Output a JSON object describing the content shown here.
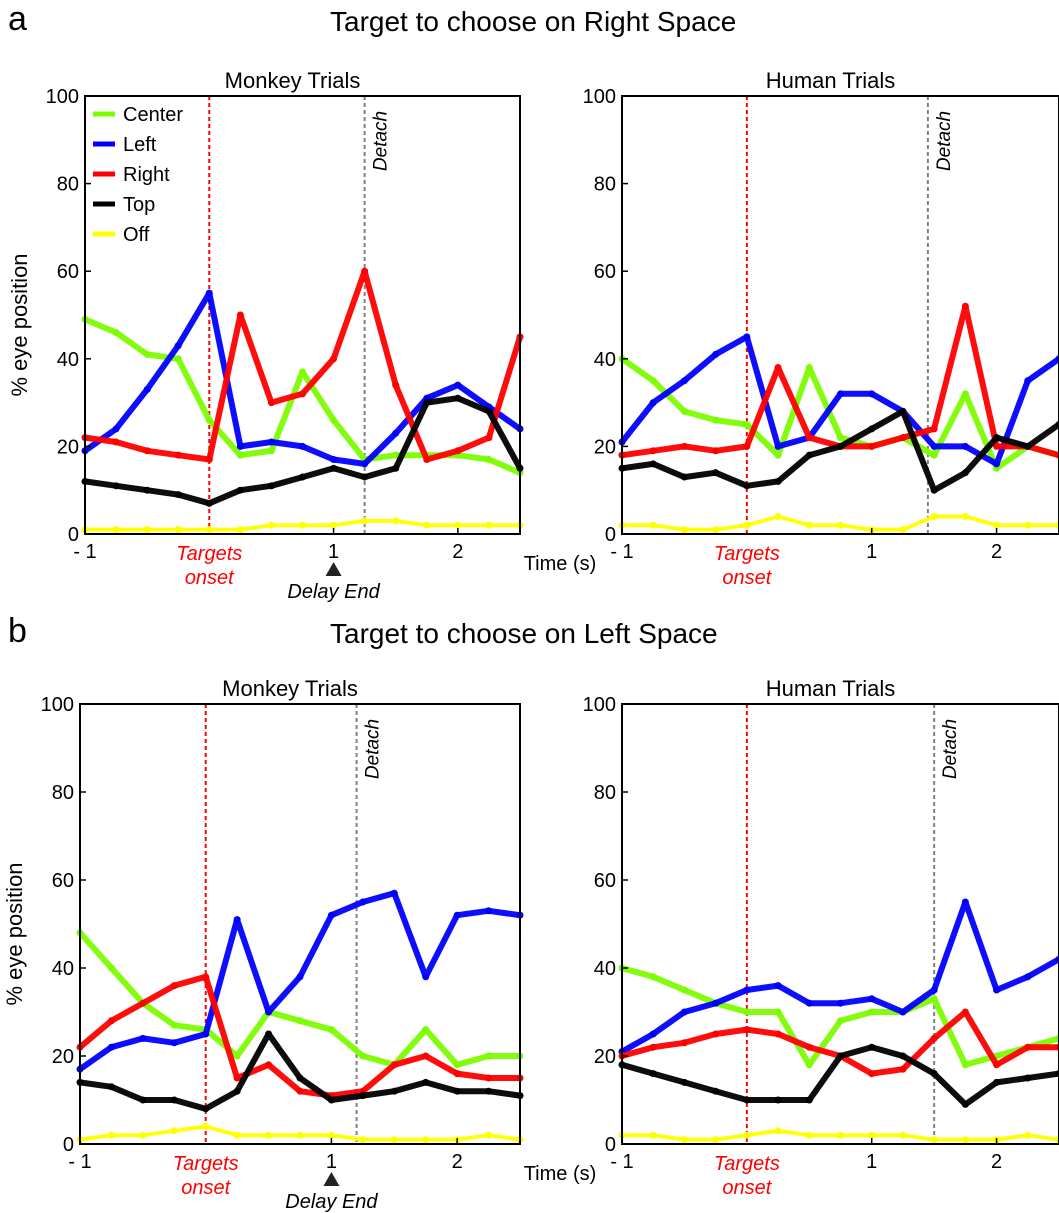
{
  "panels": [
    {
      "letter": "a",
      "title": "Target to choose on Right Space"
    },
    {
      "letter": "b",
      "title": "Target to choose on Left Space"
    }
  ],
  "colors": {
    "Center": "#7cfc00",
    "Left": "#0000ff",
    "Right": "#ff0000",
    "Top": "#000000",
    "Off": "#ffff00",
    "targets_line": "#ff0000",
    "detach_line": "#808080"
  },
  "labels": {
    "ylabel": "% eye position",
    "time_unit": "Time (s)",
    "targets": "Targets",
    "onset": "onset",
    "detach": "Detach",
    "delay_end": "Delay End"
  },
  "chart_data": [
    {
      "type": "line",
      "title": "Monkey Trials",
      "panel": "a",
      "ylim": [
        0,
        100
      ],
      "yticks": [
        "0",
        "20",
        "40",
        "60",
        "80",
        "100"
      ],
      "xlim": [
        -1,
        2.5
      ],
      "xticks": [
        "- 1",
        "1",
        "2"
      ],
      "x": [
        -1.0,
        -0.75,
        -0.5,
        -0.25,
        0.0,
        0.25,
        0.5,
        0.75,
        1.0,
        1.25,
        1.5,
        1.75,
        2.0,
        2.25,
        2.5
      ],
      "series": [
        {
          "name": "Center",
          "values": [
            49,
            46,
            41,
            40,
            26,
            18,
            19,
            37,
            26,
            17,
            18,
            18,
            18,
            17,
            14
          ]
        },
        {
          "name": "Left",
          "values": [
            19,
            24,
            33,
            43,
            55,
            20,
            21,
            20,
            17,
            16,
            23,
            31,
            34,
            29,
            24
          ]
        },
        {
          "name": "Right",
          "values": [
            22,
            21,
            19,
            18,
            17,
            50,
            30,
            32,
            40,
            60,
            34,
            17,
            19,
            22,
            45
          ]
        },
        {
          "name": "Top",
          "values": [
            12,
            11,
            10,
            9,
            7,
            10,
            11,
            13,
            15,
            13,
            15,
            30,
            31,
            28,
            15
          ]
        },
        {
          "name": "Off",
          "values": [
            1,
            1,
            1,
            1,
            1,
            1,
            2,
            2,
            2,
            3,
            3,
            2,
            2,
            2,
            2
          ]
        }
      ],
      "markers": {
        "targets_onset": 0.0,
        "detach": 1.25,
        "delay_end": 1.0
      }
    },
    {
      "type": "line",
      "title": "Human Trials",
      "panel": "a",
      "ylim": [
        0,
        100
      ],
      "yticks": [
        "0",
        "20",
        "40",
        "60",
        "80",
        "100"
      ],
      "xlim": [
        -1,
        2.5
      ],
      "xticks": [
        "- 1",
        "1",
        "2"
      ],
      "x": [
        -1.0,
        -0.75,
        -0.5,
        -0.25,
        0.0,
        0.25,
        0.5,
        0.75,
        1.0,
        1.25,
        1.5,
        1.75,
        2.0,
        2.25,
        2.5
      ],
      "series": [
        {
          "name": "Center",
          "values": [
            40,
            35,
            28,
            26,
            25,
            18,
            38,
            22,
            20,
            22,
            18,
            32,
            15,
            20,
            18
          ]
        },
        {
          "name": "Left",
          "values": [
            21,
            30,
            35,
            41,
            45,
            20,
            22,
            32,
            32,
            28,
            20,
            20,
            16,
            35,
            40
          ]
        },
        {
          "name": "Right",
          "values": [
            18,
            19,
            20,
            19,
            20,
            38,
            22,
            20,
            20,
            22,
            24,
            52,
            20,
            20,
            18
          ]
        },
        {
          "name": "Top",
          "values": [
            15,
            16,
            13,
            14,
            11,
            12,
            18,
            20,
            24,
            28,
            10,
            14,
            22,
            20,
            25
          ]
        },
        {
          "name": "Off",
          "values": [
            2,
            2,
            1,
            1,
            2,
            4,
            2,
            2,
            1,
            1,
            4,
            4,
            2,
            2,
            2
          ]
        }
      ],
      "markers": {
        "targets_onset": 0.0,
        "detach": 1.45
      }
    },
    {
      "type": "line",
      "title": "Monkey Trials",
      "panel": "b",
      "ylim": [
        0,
        100
      ],
      "yticks": [
        "0",
        "20",
        "40",
        "60",
        "80",
        "100"
      ],
      "xlim": [
        -1,
        2.5
      ],
      "xticks": [
        "- 1",
        "1",
        "2"
      ],
      "x": [
        -1.0,
        -0.75,
        -0.5,
        -0.25,
        0.0,
        0.25,
        0.5,
        0.75,
        1.0,
        1.25,
        1.5,
        1.75,
        2.0,
        2.25,
        2.5
      ],
      "series": [
        {
          "name": "Center",
          "values": [
            48,
            40,
            32,
            27,
            26,
            20,
            30,
            28,
            26,
            20,
            18,
            26,
            18,
            20,
            20
          ]
        },
        {
          "name": "Left",
          "values": [
            17,
            22,
            24,
            23,
            25,
            51,
            30,
            38,
            52,
            55,
            57,
            38,
            52,
            53,
            52
          ]
        },
        {
          "name": "Right",
          "values": [
            22,
            28,
            32,
            36,
            38,
            15,
            18,
            12,
            11,
            12,
            18,
            20,
            16,
            15,
            15
          ]
        },
        {
          "name": "Top",
          "values": [
            14,
            13,
            10,
            10,
            8,
            12,
            25,
            15,
            10,
            11,
            12,
            14,
            12,
            12,
            11
          ]
        },
        {
          "name": "Off",
          "values": [
            1,
            2,
            2,
            3,
            4,
            2,
            2,
            2,
            2,
            1,
            1,
            1,
            1,
            2,
            1
          ]
        }
      ],
      "markers": {
        "targets_onset": 0.0,
        "detach": 1.2,
        "delay_end": 1.0
      }
    },
    {
      "type": "line",
      "title": "Human Trials",
      "panel": "b",
      "ylim": [
        0,
        100
      ],
      "yticks": [
        "0",
        "20",
        "40",
        "60",
        "80",
        "100"
      ],
      "xlim": [
        -1,
        2.5
      ],
      "xticks": [
        "- 1",
        "1",
        "2"
      ],
      "x": [
        -1.0,
        -0.75,
        -0.5,
        -0.25,
        0.0,
        0.25,
        0.5,
        0.75,
        1.0,
        1.25,
        1.5,
        1.75,
        2.0,
        2.25,
        2.5
      ],
      "series": [
        {
          "name": "Center",
          "values": [
            40,
            38,
            35,
            32,
            30,
            30,
            18,
            28,
            30,
            30,
            33,
            18,
            20,
            22,
            24
          ]
        },
        {
          "name": "Left",
          "values": [
            21,
            25,
            30,
            32,
            35,
            36,
            32,
            32,
            33,
            30,
            35,
            55,
            35,
            38,
            42
          ]
        },
        {
          "name": "Right",
          "values": [
            20,
            22,
            23,
            25,
            26,
            25,
            22,
            20,
            16,
            17,
            24,
            30,
            18,
            22,
            22
          ]
        },
        {
          "name": "Top",
          "values": [
            18,
            16,
            14,
            12,
            10,
            10,
            10,
            20,
            22,
            20,
            16,
            9,
            14,
            15,
            16
          ]
        },
        {
          "name": "Off",
          "values": [
            2,
            2,
            1,
            1,
            2,
            3,
            2,
            2,
            2,
            2,
            1,
            1,
            1,
            2,
            1
          ]
        }
      ],
      "markers": {
        "targets_onset": 0.0,
        "detach": 1.5
      }
    }
  ]
}
